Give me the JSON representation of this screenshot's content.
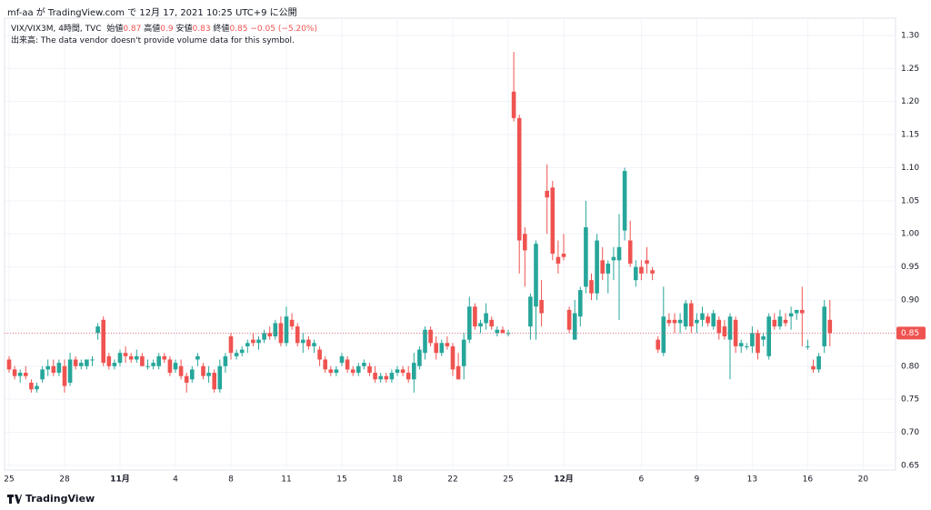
{
  "header": "mf-aa が TradingView.com で 12月 17, 2021 10:25 UTC+9 に公開",
  "chart_data": {
    "type": "candlestick",
    "title": "VIX/VIX3M, 4時間, TVC",
    "legend": {
      "open_label": "始値",
      "open": 0.87,
      "high_label": "高値",
      "high": 0.9,
      "low_label": "安値",
      "low": 0.83,
      "close_label": "終値",
      "close": 0.85,
      "change": {
        "value": -0.05,
        "label": "−0.05"
      },
      "change_pct": {
        "value": -5.2,
        "label": "(−5.20%)"
      }
    },
    "volume_note": "出来高: The data vendor doesn't provide volume data for this symbol.",
    "up_color": "#26a69a",
    "down_color": "#ef5350",
    "grid": true,
    "last_price": 0.85,
    "ylim": [
      0.643,
      1.326
    ],
    "yticks": [
      0.65,
      {
        "value": 0.7,
        "label": "0.70"
      },
      0.75,
      {
        "value": 0.8,
        "label": "0.80"
      },
      0.85,
      {
        "value": 0.9,
        "label": "0.90"
      },
      0.95,
      {
        "value": 1.0,
        "label": "1.00"
      },
      1.05,
      {
        "value": 1.1,
        "label": "1.10"
      },
      1.15,
      {
        "value": 1.2,
        "label": "1.20"
      },
      1.25,
      {
        "value": 1.3,
        "label": "1.30"
      }
    ],
    "categories": [
      "25",
      null,
      null,
      null,
      null,
      null,
      null,
      null,
      null,
      null,
      "28",
      null,
      null,
      null,
      null,
      null,
      null,
      null,
      null,
      null,
      "11月",
      null,
      null,
      null,
      null,
      null,
      null,
      null,
      null,
      null,
      "4",
      null,
      null,
      null,
      null,
      null,
      null,
      null,
      null,
      null,
      "8",
      null,
      null,
      null,
      null,
      null,
      null,
      null,
      null,
      null,
      "11",
      null,
      null,
      null,
      null,
      null,
      null,
      null,
      null,
      null,
      "15",
      null,
      null,
      null,
      null,
      null,
      null,
      null,
      null,
      null,
      "18",
      null,
      null,
      null,
      null,
      null,
      null,
      null,
      null,
      null,
      "22",
      null,
      null,
      null,
      null,
      null,
      null,
      null,
      null,
      null,
      "25",
      null,
      null,
      null,
      null,
      null,
      null,
      null,
      null,
      null,
      "12月",
      null,
      null,
      null,
      null,
      null,
      null,
      null,
      null,
      null,
      null,
      null,
      null,
      null,
      "6",
      null,
      null,
      null,
      null,
      null,
      null,
      null,
      null,
      null,
      "9",
      null,
      null,
      null,
      null,
      null,
      null,
      null,
      null,
      null,
      "13",
      null,
      null,
      null,
      null,
      null,
      null,
      null,
      null,
      null,
      "16",
      null,
      null,
      null,
      null,
      null,
      null,
      null,
      null,
      null,
      "20",
      null,
      null,
      null,
      null,
      null
    ],
    "open": [
      0.81,
      0.795,
      0.785,
      0.79,
      0.775,
      0.765,
      0.78,
      0.795,
      0.8,
      0.79,
      0.8,
      0.775,
      0.81,
      0.8,
      0.8,
      0.81,
      0.85,
      0.87,
      0.815,
      0.8,
      0.805,
      0.82,
      0.815,
      0.81,
      0.815,
      0.8,
      0.8,
      0.8,
      0.815,
      0.81,
      0.795,
      0.8,
      0.785,
      0.78,
      0.81,
      0.8,
      0.785,
      0.79,
      0.765,
      0.8,
      0.845,
      0.815,
      0.82,
      0.83,
      0.84,
      0.835,
      0.84,
      0.85,
      0.845,
      0.865,
      0.835,
      0.87,
      0.86,
      0.835,
      0.84,
      0.83,
      0.825,
      0.81,
      0.795,
      0.79,
      0.805,
      0.81,
      0.795,
      0.79,
      0.8,
      0.8,
      0.79,
      0.78,
      0.785,
      0.78,
      0.79,
      0.795,
      0.79,
      0.78,
      0.8,
      0.82,
      0.855,
      0.835,
      0.82,
      0.835,
      0.83,
      0.8,
      0.8,
      0.84,
      0.89,
      0.86,
      0.865,
      0.87,
      0.85,
      0.855,
      0.85,
      1.215,
      1.175,
      1.0,
      0.86,
      0.89,
      0.9,
      1.065,
      1.07,
      0.965,
      0.97,
      0.885,
      0.84,
      0.875,
      0.92,
      0.93,
      0.91,
      0.96,
      0.94,
      0.96,
      0.96,
      1.005,
      0.99,
      0.93,
      0.95,
      0.96,
      0.945,
      0.84,
      0.82,
      0.87,
      0.87,
      0.865,
      0.86,
      0.895,
      0.865,
      0.87,
      0.875,
      0.86,
      0.87,
      0.86,
      0.84,
      0.87,
      0.83,
      0.83,
      0.83,
      0.85,
      0.84,
      0.815,
      0.87,
      0.86,
      0.87,
      0.875,
      0.88,
      0.885,
      0.83,
      0.8,
      0.795,
      0.83,
      0.87,
      null,
      null,
      null,
      null,
      null,
      null,
      null,
      null,
      null,
      null,
      null
    ],
    "high": [
      0.815,
      0.8,
      0.795,
      0.8,
      0.78,
      0.775,
      0.8,
      0.81,
      0.81,
      0.81,
      0.81,
      0.82,
      0.815,
      0.81,
      0.81,
      0.815,
      0.865,
      0.875,
      0.82,
      0.81,
      0.825,
      0.83,
      0.82,
      0.825,
      0.82,
      0.81,
      0.81,
      0.82,
      0.82,
      0.815,
      0.81,
      0.81,
      0.79,
      0.8,
      0.82,
      0.805,
      0.8,
      0.795,
      0.81,
      0.82,
      0.85,
      0.825,
      0.83,
      0.84,
      0.85,
      0.845,
      0.855,
      0.86,
      0.87,
      0.875,
      0.89,
      0.88,
      0.865,
      0.85,
      0.845,
      0.84,
      0.83,
      0.815,
      0.8,
      0.8,
      0.82,
      0.815,
      0.8,
      0.805,
      0.81,
      0.805,
      0.8,
      0.79,
      0.79,
      0.795,
      0.8,
      0.8,
      0.8,
      0.82,
      0.83,
      0.86,
      0.86,
      0.845,
      0.84,
      0.845,
      0.835,
      0.82,
      0.85,
      0.905,
      0.895,
      0.87,
      0.895,
      0.875,
      0.86,
      0.86,
      0.855,
      1.275,
      1.18,
      1.01,
      0.91,
      0.99,
      0.93,
      1.105,
      1.08,
      0.99,
      1.0,
      0.89,
      0.9,
      0.92,
      1.05,
      0.94,
      1.0,
      0.98,
      0.96,
      0.98,
      1.03,
      1.1,
      1.02,
      0.96,
      0.96,
      0.98,
      0.95,
      0.845,
      0.92,
      0.88,
      0.88,
      0.88,
      0.9,
      0.9,
      0.88,
      0.89,
      0.88,
      0.885,
      0.875,
      0.87,
      0.88,
      0.875,
      0.84,
      0.835,
      0.86,
      0.855,
      0.85,
      0.88,
      0.88,
      0.885,
      0.88,
      0.89,
      0.885,
      0.92,
      0.84,
      0.81,
      0.82,
      0.9,
      0.9,
      null,
      null,
      null,
      null,
      null,
      null,
      null,
      null,
      null,
      null,
      null
    ],
    "low": [
      0.79,
      0.78,
      0.775,
      0.78,
      0.76,
      0.76,
      0.775,
      0.785,
      0.785,
      0.785,
      0.76,
      0.77,
      0.795,
      0.795,
      0.795,
      0.8,
      0.84,
      0.8,
      0.795,
      0.795,
      0.8,
      0.805,
      0.805,
      0.805,
      0.8,
      0.795,
      0.795,
      0.795,
      0.805,
      0.785,
      0.79,
      0.78,
      0.76,
      0.775,
      0.8,
      0.78,
      0.775,
      0.76,
      0.76,
      0.79,
      0.81,
      0.81,
      0.815,
      0.82,
      0.83,
      0.825,
      0.835,
      0.84,
      0.84,
      0.83,
      0.83,
      0.855,
      0.83,
      0.82,
      0.825,
      0.82,
      0.8,
      0.79,
      0.785,
      0.785,
      0.8,
      0.79,
      0.785,
      0.785,
      0.795,
      0.785,
      0.775,
      0.775,
      0.775,
      0.775,
      0.785,
      0.785,
      0.775,
      0.76,
      0.795,
      0.81,
      0.83,
      0.81,
      0.815,
      0.825,
      0.785,
      0.78,
      0.78,
      0.835,
      0.855,
      0.85,
      0.855,
      0.855,
      0.845,
      0.85,
      0.845,
      1.17,
      0.94,
      0.92,
      0.84,
      0.84,
      0.86,
      1.0,
      0.96,
      0.94,
      0.96,
      0.85,
      0.84,
      0.86,
      0.91,
      0.9,
      0.9,
      0.93,
      0.91,
      0.93,
      0.87,
      0.99,
      0.95,
      0.92,
      0.93,
      0.94,
      0.93,
      0.82,
      0.815,
      0.86,
      0.85,
      0.85,
      0.855,
      0.85,
      0.85,
      0.86,
      0.86,
      0.855,
      0.84,
      0.84,
      0.78,
      0.82,
      0.82,
      0.825,
      0.82,
      0.81,
      0.83,
      0.81,
      0.855,
      0.855,
      0.86,
      0.855,
      0.87,
      0.83,
      0.825,
      0.79,
      0.79,
      0.82,
      0.83,
      null,
      null,
      null,
      null,
      null,
      null,
      null,
      null,
      null,
      null,
      null
    ],
    "close": [
      0.795,
      0.785,
      0.79,
      0.785,
      0.765,
      0.77,
      0.795,
      0.8,
      0.79,
      0.805,
      0.77,
      0.81,
      0.8,
      0.805,
      0.81,
      0.81,
      0.86,
      0.805,
      0.8,
      0.805,
      0.82,
      0.815,
      0.81,
      0.815,
      0.8,
      0.8,
      0.805,
      0.815,
      0.81,
      0.79,
      0.805,
      0.785,
      0.775,
      0.795,
      0.815,
      0.785,
      0.79,
      0.765,
      0.8,
      0.815,
      0.82,
      0.82,
      0.825,
      0.835,
      0.835,
      0.84,
      0.85,
      0.845,
      0.865,
      0.835,
      0.875,
      0.86,
      0.835,
      0.84,
      0.83,
      0.835,
      0.81,
      0.795,
      0.79,
      0.795,
      0.815,
      0.795,
      0.79,
      0.8,
      0.805,
      0.79,
      0.78,
      0.785,
      0.78,
      0.79,
      0.795,
      0.79,
      0.78,
      0.805,
      0.825,
      0.855,
      0.835,
      0.82,
      0.835,
      0.83,
      0.795,
      0.78,
      0.84,
      0.89,
      0.86,
      0.865,
      0.88,
      0.86,
      0.855,
      0.85,
      0.85,
      1.175,
      0.99,
      0.975,
      0.905,
      0.985,
      0.88,
      1.055,
      0.97,
      0.955,
      0.965,
      0.855,
      0.88,
      0.915,
      1.01,
      0.91,
      0.99,
      0.94,
      0.955,
      0.965,
      0.98,
      1.095,
      0.955,
      0.95,
      0.94,
      0.955,
      0.94,
      0.825,
      0.875,
      0.865,
      0.865,
      0.87,
      0.895,
      0.86,
      0.87,
      0.88,
      0.865,
      0.88,
      0.85,
      0.845,
      0.875,
      0.83,
      0.835,
      0.83,
      0.85,
      0.82,
      0.845,
      0.875,
      0.86,
      0.875,
      0.865,
      0.88,
      0.885,
      0.88,
      0.83,
      0.795,
      0.815,
      0.89,
      0.85,
      null,
      null,
      null,
      null,
      null,
      null,
      null,
      null,
      null,
      null,
      null
    ]
  },
  "footer_brand": "TradingView"
}
